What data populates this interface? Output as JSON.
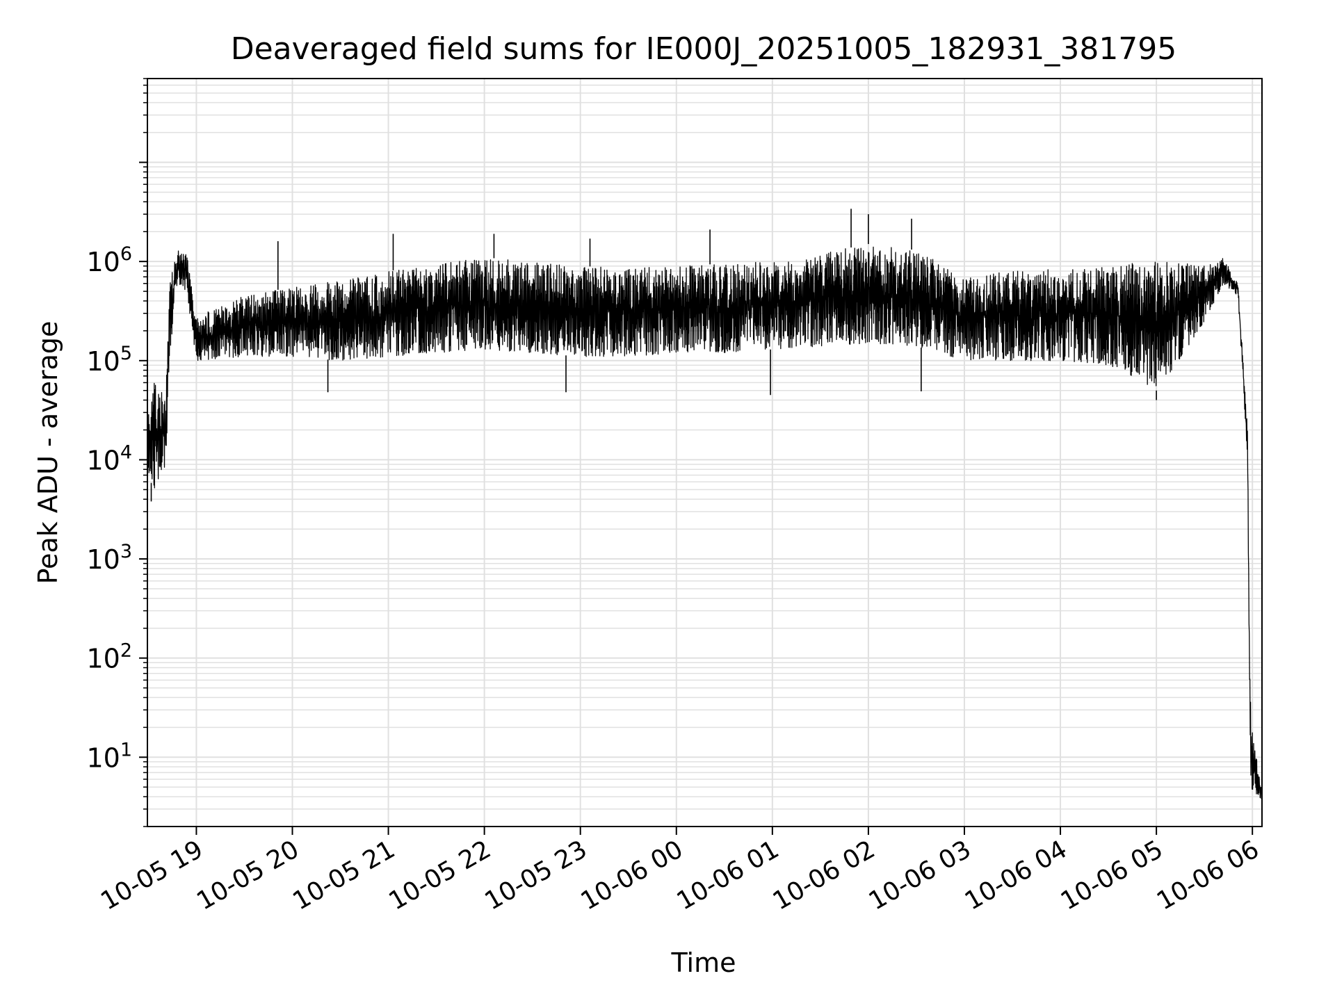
{
  "chart_data": {
    "type": "line",
    "title": "Deaveraged field sums for IE000J_20251005_182931_381795",
    "xlabel": "Time",
    "ylabel": "Peak ADU - average",
    "yscale": "log",
    "ylim": [
      2,
      70000000
    ],
    "y_ticks": [
      {
        "value": 10,
        "base": "10",
        "exp": "1"
      },
      {
        "value": 100,
        "base": "10",
        "exp": "2"
      },
      {
        "value": 1000,
        "base": "10",
        "exp": "3"
      },
      {
        "value": 10000,
        "base": "10",
        "exp": "4"
      },
      {
        "value": 100000,
        "base": "10",
        "exp": "5"
      },
      {
        "value": 1000000,
        "base": "10",
        "exp": "6"
      }
    ],
    "x_unit": "hours since 2025-10-05 18:00",
    "xlim": [
      0.49,
      12.1
    ],
    "x_ticks": [
      {
        "value": 1,
        "label": "10-05 19"
      },
      {
        "value": 2,
        "label": "10-05 20"
      },
      {
        "value": 3,
        "label": "10-05 21"
      },
      {
        "value": 4,
        "label": "10-05 22"
      },
      {
        "value": 5,
        "label": "10-05 23"
      },
      {
        "value": 6,
        "label": "10-06 00"
      },
      {
        "value": 7,
        "label": "10-06 01"
      },
      {
        "value": 8,
        "label": "10-06 02"
      },
      {
        "value": 9,
        "label": "10-06 03"
      },
      {
        "value": 10,
        "label": "10-06 04"
      },
      {
        "value": 11,
        "label": "10-06 05"
      },
      {
        "value": 12,
        "label": "10-06 06"
      }
    ],
    "grid": true,
    "series": [
      {
        "name": "deaveraged field sum",
        "color": "#000000",
        "envelope": [
          {
            "x": 0.49,
            "low": 8000,
            "high": 25000
          },
          {
            "x": 0.55,
            "low": 5000,
            "high": 60000
          },
          {
            "x": 0.62,
            "low": 6000,
            "high": 55000
          },
          {
            "x": 0.68,
            "low": 8000,
            "high": 40000
          },
          {
            "x": 0.72,
            "low": 100000,
            "high": 600000
          },
          {
            "x": 0.8,
            "low": 600000,
            "high": 1300000
          },
          {
            "x": 0.9,
            "low": 500000,
            "high": 1200000
          },
          {
            "x": 1.0,
            "low": 100000,
            "high": 280000
          },
          {
            "x": 1.5,
            "low": 110000,
            "high": 450000
          },
          {
            "x": 2.0,
            "low": 110000,
            "high": 550000
          },
          {
            "x": 2.5,
            "low": 100000,
            "high": 650000
          },
          {
            "x": 3.0,
            "low": 110000,
            "high": 800000
          },
          {
            "x": 3.5,
            "low": 120000,
            "high": 950000
          },
          {
            "x": 4.0,
            "low": 130000,
            "high": 1100000
          },
          {
            "x": 4.5,
            "low": 120000,
            "high": 1000000
          },
          {
            "x": 5.0,
            "low": 110000,
            "high": 900000
          },
          {
            "x": 5.5,
            "low": 110000,
            "high": 850000
          },
          {
            "x": 6.0,
            "low": 120000,
            "high": 900000
          },
          {
            "x": 6.5,
            "low": 120000,
            "high": 950000
          },
          {
            "x": 7.0,
            "low": 130000,
            "high": 1000000
          },
          {
            "x": 7.5,
            "low": 140000,
            "high": 1200000
          },
          {
            "x": 8.0,
            "low": 150000,
            "high": 1500000
          },
          {
            "x": 8.5,
            "low": 140000,
            "high": 1300000
          },
          {
            "x": 9.0,
            "low": 100000,
            "high": 700000
          },
          {
            "x": 9.5,
            "low": 100000,
            "high": 800000
          },
          {
            "x": 10.0,
            "low": 100000,
            "high": 850000
          },
          {
            "x": 10.5,
            "low": 90000,
            "high": 900000
          },
          {
            "x": 10.85,
            "low": 60000,
            "high": 1000000
          },
          {
            "x": 11.0,
            "low": 50000,
            "high": 1000000
          },
          {
            "x": 11.2,
            "low": 90000,
            "high": 1000000
          },
          {
            "x": 11.5,
            "low": 250000,
            "high": 900000
          },
          {
            "x": 11.7,
            "low": 600000,
            "high": 1100000
          },
          {
            "x": 11.85,
            "low": 450000,
            "high": 600000
          },
          {
            "x": 11.95,
            "low": 10000,
            "high": 20000
          },
          {
            "x": 11.97,
            "low": 40,
            "high": 120
          },
          {
            "x": 11.985,
            "low": 4,
            "high": 25
          },
          {
            "x": 12.1,
            "low": 3.8,
            "high": 4.4
          }
        ],
        "spikes": [
          {
            "x": 0.53,
            "value": 3800,
            "dir": "down"
          },
          {
            "x": 1.85,
            "value": 1600000,
            "dir": "up"
          },
          {
            "x": 2.37,
            "value": 48000,
            "dir": "down"
          },
          {
            "x": 3.05,
            "value": 1900000,
            "dir": "up"
          },
          {
            "x": 4.1,
            "value": 1900000,
            "dir": "up"
          },
          {
            "x": 4.85,
            "value": 48000,
            "dir": "down"
          },
          {
            "x": 5.1,
            "value": 1700000,
            "dir": "up"
          },
          {
            "x": 6.35,
            "value": 2100000,
            "dir": "up"
          },
          {
            "x": 6.98,
            "value": 45000,
            "dir": "down"
          },
          {
            "x": 7.82,
            "value": 3400000,
            "dir": "up"
          },
          {
            "x": 8.0,
            "value": 3000000,
            "dir": "up"
          },
          {
            "x": 8.45,
            "value": 2700000,
            "dir": "up"
          },
          {
            "x": 8.55,
            "value": 49000,
            "dir": "down"
          },
          {
            "x": 11.0,
            "value": 40000,
            "dir": "down"
          }
        ]
      }
    ]
  }
}
